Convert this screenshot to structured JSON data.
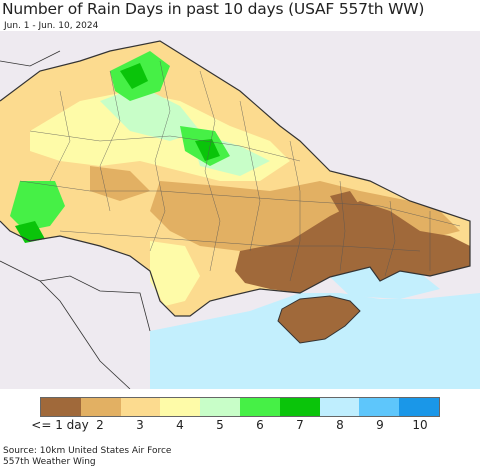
{
  "title": "Number of Rain Days in past 10 days (USAF 557th WW)",
  "subtitle": "Jun. 1 - Jun. 10, 2024",
  "legend": {
    "labels": [
      "<= 1 day",
      "2",
      "3",
      "4",
      "5",
      "6",
      "7",
      "8",
      "9",
      "10"
    ],
    "colors": [
      "#a0693a",
      "#e2b063",
      "#fcdb8f",
      "#fefba8",
      "#c8fec8",
      "#46f046",
      "#0ac40a",
      "#bfeefe",
      "#5ec6fb",
      "#1a97e8"
    ]
  },
  "source": {
    "line1": "Source: 10km United States Air Force",
    "line2": "557th Weather Wing"
  },
  "colors": {
    "sea": "#c3effd",
    "outside": "#eeeaf0",
    "border": "#333333"
  }
}
